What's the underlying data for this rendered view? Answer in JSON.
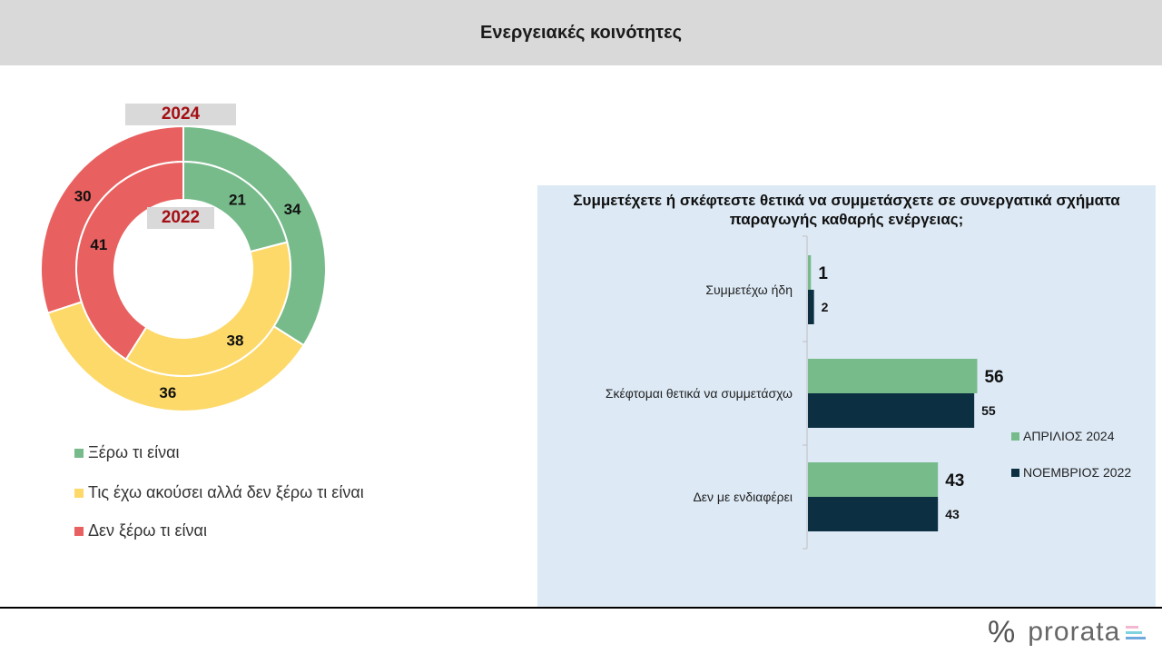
{
  "header": {
    "title": "Ενεργειακές κοινότητες"
  },
  "donut": {
    "outer_year": "2024",
    "inner_year": "2022",
    "categories": [
      "Ξέρω τι είναι",
      "Τις έχω ακούσει αλλά δεν ξέρω τι είναι",
      "Δεν ξέρω τι είναι"
    ],
    "colors": [
      "#77bb8b",
      "#fdd96a",
      "#e8605f"
    ]
  },
  "bar": {
    "legend": [
      "ΑΠΡΙΛΙΟΣ 2024",
      "ΝΟΕΜΒΡΙΟΣ 2022"
    ],
    "colors": [
      "#77bb8b",
      "#0d2f42"
    ]
  },
  "logo": {
    "symbol": "%",
    "text": "prorata",
    "bar_colors": [
      "#f2b8d0",
      "#7fd3e0",
      "#6fa8dc"
    ]
  },
  "chart_data": [
    {
      "type": "pie",
      "subtype": "donut",
      "categories": [
        "Ξέρω τι είναι",
        "Τις έχω ακούσει αλλά δεν ξέρω τι είναι",
        "Δεν ξέρω τι είναι"
      ],
      "series": [
        {
          "name": "2024",
          "values": [
            34,
            36,
            30
          ]
        },
        {
          "name": "2022",
          "values": [
            21,
            38,
            41
          ]
        }
      ],
      "legend": "bottom"
    },
    {
      "type": "bar",
      "orientation": "horizontal",
      "title": "Συμμετέχετε ή σκέφτεστε θετικά να συμμετάσχετε σε συνεργατικά σχήματα παραγωγής καθαρής ενέργειας;",
      "categories": [
        "Συμμετέχω ήδη",
        "Σκέφτομαι θετικά  να συμμετάσχω",
        "Δεν με ενδιαφέρει"
      ],
      "series": [
        {
          "name": "ΑΠΡΙΛΙΟΣ 2024",
          "values": [
            1,
            56,
            43
          ]
        },
        {
          "name": "ΝΟΕΜΒΡΙΟΣ 2022",
          "values": [
            2,
            55,
            43
          ]
        }
      ],
      "legend": "right"
    }
  ]
}
